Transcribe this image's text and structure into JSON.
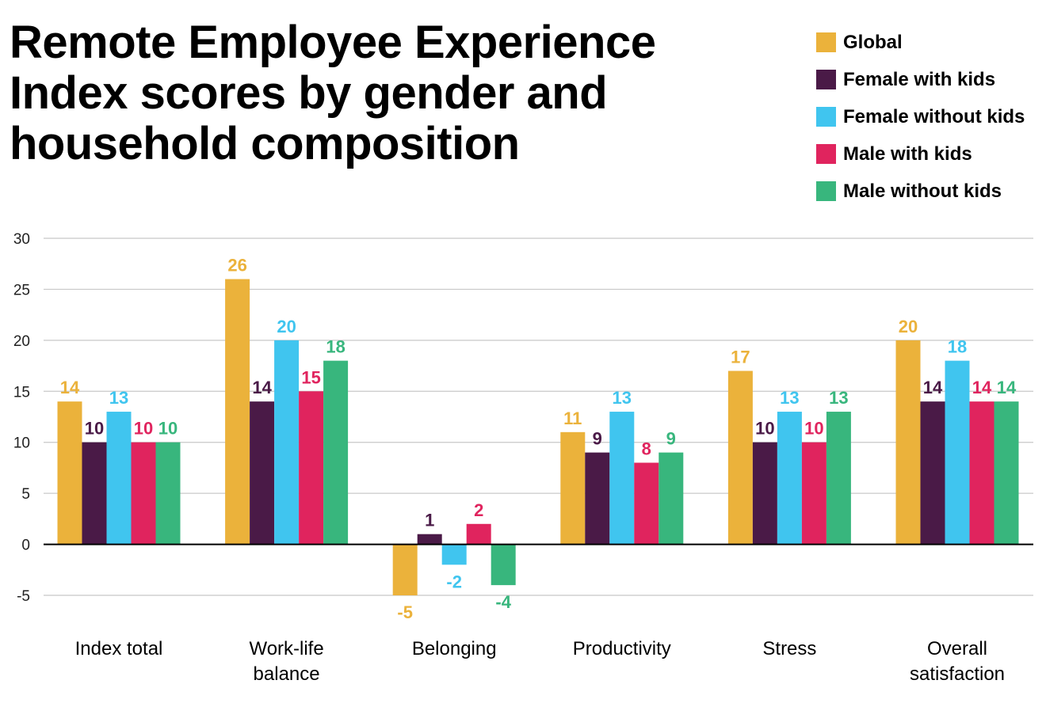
{
  "chart_data": {
    "type": "bar",
    "title": "Remote Employee Experience Index scores by gender and household composition",
    "categories": [
      [
        "Index total"
      ],
      [
        "Work-life",
        "balance"
      ],
      [
        "Belonging"
      ],
      [
        "Productivity"
      ],
      [
        "Stress"
      ],
      [
        "Overall",
        "satisfaction"
      ]
    ],
    "series": [
      {
        "name": "Global",
        "color": "#EBB23B",
        "values": [
          14,
          26,
          -5,
          11,
          17,
          20
        ]
      },
      {
        "name": "Female with kids",
        "color": "#4A1A47",
        "values": [
          10,
          14,
          1,
          9,
          10,
          14
        ]
      },
      {
        "name": "Female without kids",
        "color": "#40C5EF",
        "values": [
          13,
          20,
          -2,
          13,
          13,
          18
        ]
      },
      {
        "name": "Male with kids",
        "color": "#E0245E",
        "values": [
          10,
          15,
          2,
          8,
          10,
          14
        ]
      },
      {
        "name": "Male without kids",
        "color": "#38B67D",
        "values": [
          10,
          18,
          -4,
          9,
          13,
          14
        ]
      }
    ],
    "ylim": [
      -5,
      30
    ],
    "yticks": [
      30,
      25,
      20,
      15,
      10,
      5,
      0,
      -5
    ],
    "grid": true,
    "legend_position": "top-right",
    "data_labels": true
  }
}
